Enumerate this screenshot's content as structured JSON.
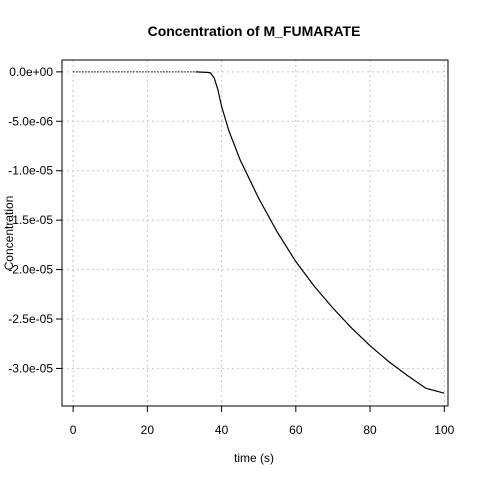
{
  "chart_data": {
    "type": "line",
    "title": "Concentration of M_FUMARATE",
    "xlabel": "time (s)",
    "ylabel": "Concentration",
    "xlim": [
      -3,
      101
    ],
    "ylim": [
      -3.38e-05,
      1.2e-06
    ],
    "grid": true,
    "x_ticks": [
      0,
      20,
      40,
      60,
      80,
      100
    ],
    "x_tick_labels": [
      "0",
      "20",
      "40",
      "60",
      "80",
      "100"
    ],
    "y_ticks": [
      0,
      -5e-06,
      -1e-05,
      -1.5e-05,
      -2e-05,
      -2.5e-05,
      -3e-05
    ],
    "y_tick_labels": [
      "0.0e+00",
      "-5.0e-06",
      "-1.0e-05",
      "-1.5e-05",
      "-2.0e-05",
      "-2.5e-05",
      "-3.0e-05"
    ],
    "series": [
      {
        "style": "dotted",
        "x": [
          0,
          10,
          20,
          30,
          33
        ],
        "y": [
          0,
          0,
          0,
          0,
          0
        ]
      },
      {
        "style": "solid",
        "x": [
          33,
          36,
          37,
          38,
          39,
          40,
          42,
          45,
          50,
          55,
          60,
          65,
          70,
          75,
          80,
          85,
          90,
          95,
          100
        ],
        "y": [
          0,
          -5e-08,
          -1e-07,
          -6e-07,
          -1.8e-06,
          -3.5e-06,
          -6e-06,
          -8.9e-06,
          -1.28e-05,
          -1.62e-05,
          -1.92e-05,
          -2.17e-05,
          -2.39e-05,
          -2.59e-05,
          -2.77e-05,
          -2.93e-05,
          -3.07e-05,
          -3.2e-05,
          -3.25e-05
        ]
      }
    ]
  }
}
